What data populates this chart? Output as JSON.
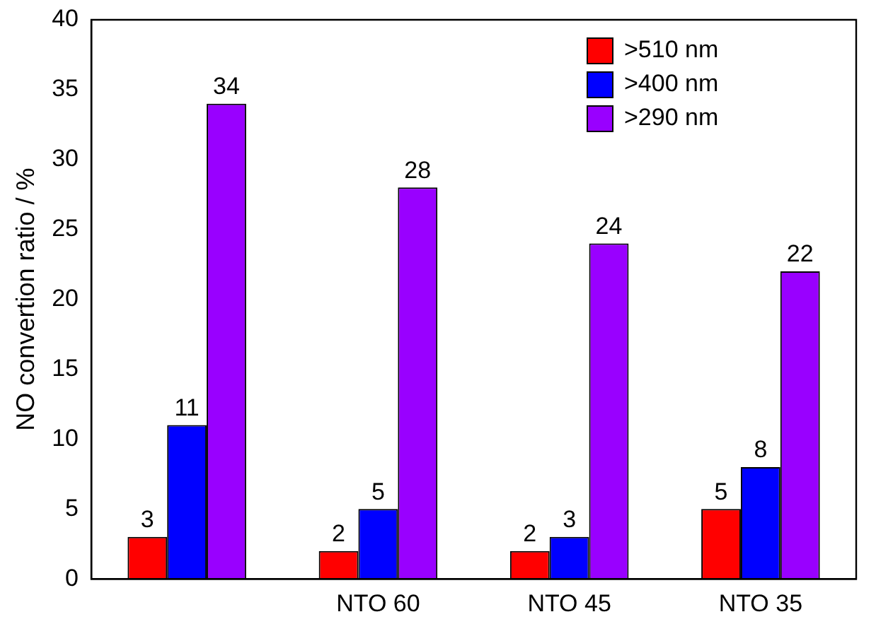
{
  "chart_data": {
    "type": "bar",
    "ylabel": "NO convertion ratio / %",
    "categories": [
      null,
      "NTO 60",
      "NTO 45",
      "NTO 35"
    ],
    "series": [
      {
        "name": ">510 nm",
        "color": "#ff0000",
        "values": [
          3,
          2,
          2,
          5
        ]
      },
      {
        "name": ">400 nm",
        "color": "#0000ff",
        "values": [
          11,
          5,
          3,
          8
        ]
      },
      {
        "name": ">290 nm",
        "color": "#9900ff",
        "values": [
          34,
          28,
          24,
          22
        ]
      }
    ],
    "ylim": [
      0,
      40
    ],
    "yticks": [
      0,
      5,
      10,
      15,
      20,
      25,
      30,
      35,
      40
    ],
    "grid": false,
    "legend": "top right",
    "data_labels": true
  }
}
